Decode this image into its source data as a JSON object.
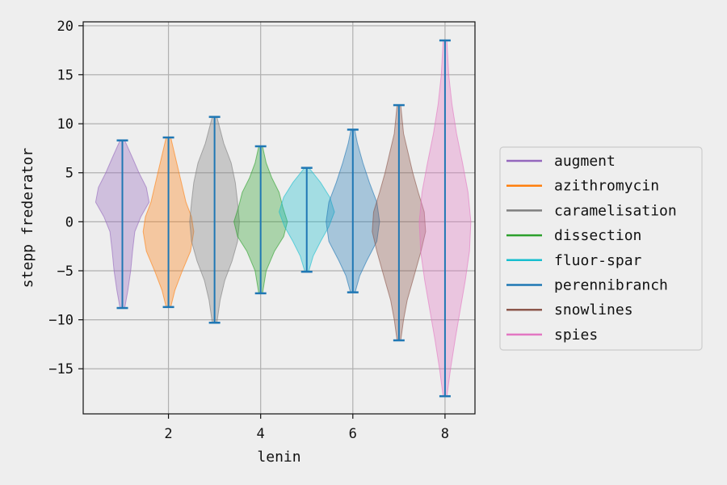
{
  "chart_data": {
    "type": "violin",
    "title": "",
    "xlabel": "lenin",
    "ylabel": "stepp frederator",
    "xlim": [
      0.15,
      8.65
    ],
    "ylim": [
      -19.6,
      20.4
    ],
    "xticks": [
      2,
      4,
      6,
      8
    ],
    "yticks": [
      -15,
      -10,
      -5,
      0,
      5,
      10,
      15,
      20
    ],
    "grid": true,
    "legend_position": "right",
    "bar_color": "#1f77b4",
    "series": [
      {
        "name": "augment",
        "color": "#9467bd",
        "x": 1,
        "min": -8.8,
        "max": 8.3,
        "profile": [
          [
            -8.8,
            0.05
          ],
          [
            -7,
            0.12
          ],
          [
            -5,
            0.18
          ],
          [
            -3,
            0.22
          ],
          [
            -1,
            0.27
          ],
          [
            0.5,
            0.4
          ],
          [
            2,
            0.58
          ],
          [
            3.5,
            0.52
          ],
          [
            5,
            0.36
          ],
          [
            6.5,
            0.22
          ],
          [
            8.3,
            0.05
          ]
        ]
      },
      {
        "name": "azithromycin",
        "color": "#ff7f0e",
        "x": 2,
        "min": -8.7,
        "max": 8.6,
        "profile": [
          [
            -8.7,
            0.05
          ],
          [
            -7,
            0.14
          ],
          [
            -5,
            0.3
          ],
          [
            -3,
            0.48
          ],
          [
            -1,
            0.55
          ],
          [
            0.5,
            0.5
          ],
          [
            2,
            0.38
          ],
          [
            4,
            0.28
          ],
          [
            6,
            0.18
          ],
          [
            8.6,
            0.05
          ]
        ]
      },
      {
        "name": "caramelisation",
        "color": "#7f7f7f",
        "x": 3,
        "min": -10.3,
        "max": 10.7,
        "profile": [
          [
            -10.3,
            0.05
          ],
          [
            -8,
            0.12
          ],
          [
            -6,
            0.22
          ],
          [
            -4,
            0.38
          ],
          [
            -2,
            0.5
          ],
          [
            0,
            0.54
          ],
          [
            2,
            0.5
          ],
          [
            4,
            0.45
          ],
          [
            6,
            0.36
          ],
          [
            8,
            0.2
          ],
          [
            10.7,
            0.05
          ]
        ]
      },
      {
        "name": "dissection",
        "color": "#2ca02c",
        "x": 4,
        "min": -7.3,
        "max": 7.7,
        "profile": [
          [
            -7.3,
            0.04
          ],
          [
            -5,
            0.12
          ],
          [
            -3,
            0.3
          ],
          [
            -1.5,
            0.5
          ],
          [
            0,
            0.58
          ],
          [
            1.5,
            0.48
          ],
          [
            3,
            0.4
          ],
          [
            4.5,
            0.24
          ],
          [
            6,
            0.12
          ],
          [
            7.7,
            0.04
          ]
        ]
      },
      {
        "name": "fluor-spar",
        "color": "#17becf",
        "x": 5,
        "min": -5.1,
        "max": 5.5,
        "profile": [
          [
            -5.1,
            0.04
          ],
          [
            -3.5,
            0.14
          ],
          [
            -2,
            0.3
          ],
          [
            -0.5,
            0.48
          ],
          [
            1,
            0.6
          ],
          [
            2.5,
            0.5
          ],
          [
            4,
            0.3
          ],
          [
            5.5,
            0.05
          ]
        ]
      },
      {
        "name": "perennibranch",
        "color": "#1f77b4",
        "x": 6,
        "min": -7.2,
        "max": 9.4,
        "profile": [
          [
            -7.2,
            0.05
          ],
          [
            -5.5,
            0.15
          ],
          [
            -4,
            0.3
          ],
          [
            -2,
            0.52
          ],
          [
            0,
            0.58
          ],
          [
            2,
            0.52
          ],
          [
            4,
            0.36
          ],
          [
            6,
            0.22
          ],
          [
            8,
            0.1
          ],
          [
            9.4,
            0.04
          ]
        ]
      },
      {
        "name": "snowlines",
        "color": "#8c564b",
        "x": 7,
        "min": -12.1,
        "max": 11.9,
        "profile": [
          [
            -12.1,
            0.04
          ],
          [
            -10,
            0.1
          ],
          [
            -8,
            0.18
          ],
          [
            -6,
            0.3
          ],
          [
            -3,
            0.48
          ],
          [
            -1,
            0.58
          ],
          [
            1,
            0.55
          ],
          [
            3,
            0.42
          ],
          [
            5,
            0.3
          ],
          [
            7,
            0.2
          ],
          [
            9,
            0.1
          ],
          [
            11.9,
            0.04
          ]
        ]
      },
      {
        "name": "spies",
        "color": "#e377c2",
        "x": 8,
        "min": -17.8,
        "max": 18.5,
        "profile": [
          [
            -17.8,
            0.04
          ],
          [
            -15,
            0.12
          ],
          [
            -12,
            0.22
          ],
          [
            -9,
            0.33
          ],
          [
            -6,
            0.44
          ],
          [
            -3,
            0.53
          ],
          [
            0,
            0.56
          ],
          [
            3,
            0.5
          ],
          [
            6,
            0.38
          ],
          [
            9,
            0.25
          ],
          [
            12,
            0.15
          ],
          [
            15,
            0.08
          ],
          [
            18.5,
            0.04
          ]
        ]
      }
    ]
  }
}
